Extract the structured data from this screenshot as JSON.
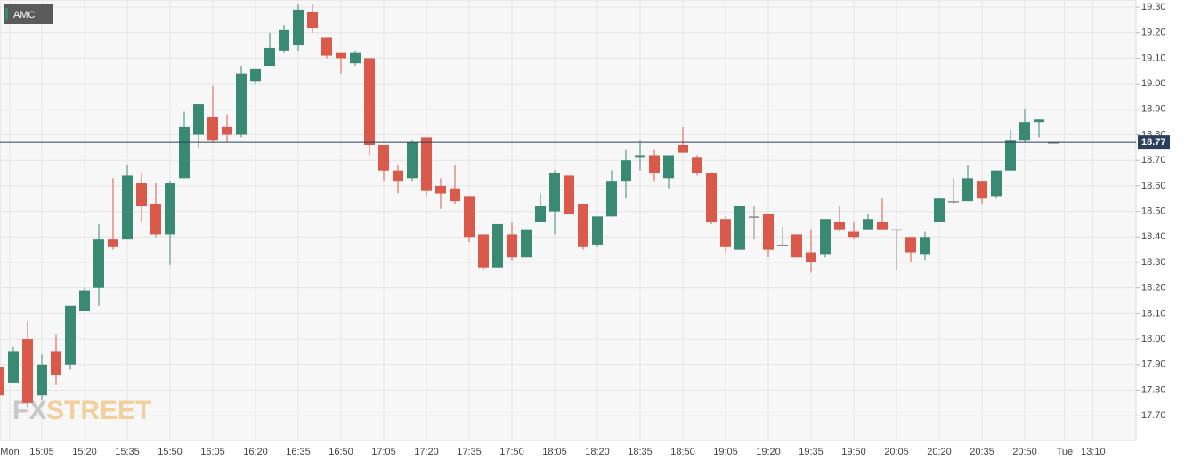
{
  "chart_data": {
    "type": "candlestick",
    "legend": "AMC",
    "watermark": [
      "FX",
      "STREET"
    ],
    "last_price": {
      "value": 18.77,
      "label": "18.77"
    },
    "ylim": [
      17.603,
      19.328
    ],
    "yticks": [
      {
        "value": 17.7,
        "label": "17.70"
      },
      {
        "value": 17.8,
        "label": "17.80"
      },
      {
        "value": 17.9,
        "label": "17.90"
      },
      {
        "value": 18.0,
        "label": "18.00"
      },
      {
        "value": 18.1,
        "label": "18.10"
      },
      {
        "value": 18.2,
        "label": "18.20"
      },
      {
        "value": 18.3,
        "label": "18.30"
      },
      {
        "value": 18.4,
        "label": "18.40"
      },
      {
        "value": 18.5,
        "label": "18.50"
      },
      {
        "value": 18.6,
        "label": "18.60"
      },
      {
        "value": 18.7,
        "label": "18.70"
      },
      {
        "value": 18.8,
        "label": "18.80"
      },
      {
        "value": 18.9,
        "label": "18.90"
      },
      {
        "value": 19.0,
        "label": "19.00"
      },
      {
        "value": 19.1,
        "label": "19.10"
      },
      {
        "value": 19.2,
        "label": "19.20"
      },
      {
        "value": 19.3,
        "label": "19.30"
      }
    ],
    "xticks": [
      {
        "value": 0.75,
        "label": "Mon"
      },
      {
        "value": 3,
        "label": "15:05"
      },
      {
        "value": 6,
        "label": "15:20"
      },
      {
        "value": 9,
        "label": "15:35"
      },
      {
        "value": 12,
        "label": "15:50"
      },
      {
        "value": 15,
        "label": "16:05"
      },
      {
        "value": 18,
        "label": "16:20"
      },
      {
        "value": 21,
        "label": "16:35"
      },
      {
        "value": 24,
        "label": "16:50"
      },
      {
        "value": 27,
        "label": "17:05"
      },
      {
        "value": 30,
        "label": "17:20"
      },
      {
        "value": 33,
        "label": "17:35"
      },
      {
        "value": 36,
        "label": "17:50"
      },
      {
        "value": 39,
        "label": "18:05"
      },
      {
        "value": 42,
        "label": "18:20"
      },
      {
        "value": 45,
        "label": "18:35"
      },
      {
        "value": 48,
        "label": "18:50"
      },
      {
        "value": 51,
        "label": "19:05"
      },
      {
        "value": 54,
        "label": "19:20"
      },
      {
        "value": 57,
        "label": "19:35"
      },
      {
        "value": 60,
        "label": "19:50"
      },
      {
        "value": 63,
        "label": "20:05"
      },
      {
        "value": 66,
        "label": "20:20"
      },
      {
        "value": 69,
        "label": "20:35"
      },
      {
        "value": 72,
        "label": "20:50"
      },
      {
        "value": 74.8,
        "label": "Tue"
      },
      {
        "value": 76.8,
        "label": "13:10"
      }
    ],
    "up_color": "#3a8a73",
    "down_color": "#d9594a",
    "flat_color": "#888888",
    "price_line_color": "#2b3f5c",
    "open": [
      17.89,
      17.83,
      18.0,
      17.78,
      17.95,
      17.9,
      18.11,
      18.2,
      18.39,
      18.39,
      18.61,
      18.53,
      18.41,
      18.63,
      18.8,
      18.87,
      18.83,
      18.8,
      19.01,
      19.07,
      19.13,
      19.15,
      19.28,
      19.18,
      19.12,
      19.08,
      19.1,
      18.76,
      18.66,
      18.63,
      18.79,
      18.6,
      18.59,
      18.56,
      18.41,
      18.28,
      18.41,
      18.32,
      18.46,
      18.5,
      18.64,
      18.53,
      18.37,
      18.48,
      18.62,
      18.71,
      18.72,
      18.63,
      18.76,
      18.71,
      18.65,
      18.47,
      18.35,
      18.48,
      18.49,
      18.37,
      18.41,
      18.34,
      18.33,
      18.46,
      18.42,
      18.43,
      18.46,
      18.43,
      18.4,
      18.33,
      18.46,
      18.54,
      18.54,
      18.62,
      18.56,
      18.66,
      18.78,
      18.85,
      18.77
    ],
    "high": [
      17.9,
      17.97,
      18.07,
      17.94,
      18.02,
      18.13,
      18.2,
      18.45,
      18.63,
      18.68,
      18.65,
      18.61,
      18.62,
      18.89,
      18.92,
      18.99,
      18.88,
      19.07,
      19.06,
      19.2,
      19.23,
      19.31,
      19.31,
      19.18,
      19.12,
      19.13,
      19.1,
      18.76,
      18.68,
      18.78,
      18.79,
      18.63,
      18.68,
      18.56,
      18.41,
      18.45,
      18.46,
      18.43,
      18.57,
      18.66,
      18.64,
      18.53,
      18.48,
      18.66,
      18.74,
      18.78,
      18.74,
      18.72,
      18.83,
      18.72,
      18.65,
      18.48,
      18.52,
      18.52,
      18.49,
      18.44,
      18.41,
      18.43,
      18.47,
      18.52,
      18.46,
      18.49,
      18.55,
      18.43,
      18.4,
      18.42,
      18.55,
      18.63,
      18.68,
      18.62,
      18.66,
      18.82,
      18.9,
      18.86,
      18.77
    ],
    "low": [
      17.61,
      17.83,
      17.73,
      17.76,
      17.82,
      17.88,
      18.11,
      18.13,
      18.35,
      18.39,
      18.46,
      18.4,
      18.29,
      18.63,
      18.75,
      18.77,
      18.77,
      18.79,
      19.0,
      19.07,
      19.12,
      19.13,
      19.2,
      19.1,
      19.04,
      19.07,
      18.72,
      18.62,
      18.57,
      18.62,
      18.56,
      18.51,
      18.53,
      18.38,
      18.27,
      18.28,
      18.31,
      18.32,
      18.46,
      18.41,
      18.49,
      18.35,
      18.36,
      18.48,
      18.55,
      18.66,
      18.62,
      18.59,
      18.73,
      18.64,
      18.45,
      18.34,
      18.35,
      18.39,
      18.32,
      18.37,
      18.32,
      18.26,
      18.32,
      18.42,
      18.39,
      18.43,
      18.43,
      18.27,
      18.3,
      18.31,
      18.46,
      18.53,
      18.54,
      18.53,
      18.55,
      18.66,
      18.77,
      18.79,
      18.77
    ],
    "close": [
      17.78,
      17.95,
      17.75,
      17.9,
      17.86,
      18.13,
      18.19,
      18.39,
      18.36,
      18.64,
      18.52,
      18.41,
      18.61,
      18.83,
      18.92,
      18.78,
      18.8,
      19.04,
      19.06,
      19.14,
      19.21,
      19.29,
      19.22,
      19.11,
      19.1,
      19.12,
      18.76,
      18.66,
      18.62,
      18.77,
      18.58,
      18.57,
      18.54,
      18.4,
      18.28,
      18.45,
      18.32,
      18.43,
      18.52,
      18.65,
      18.49,
      18.36,
      18.48,
      18.62,
      18.7,
      18.72,
      18.65,
      18.72,
      18.73,
      18.65,
      18.46,
      18.36,
      18.52,
      18.48,
      18.35,
      18.37,
      18.32,
      18.3,
      18.47,
      18.43,
      18.4,
      18.47,
      18.43,
      18.43,
      18.34,
      18.4,
      18.55,
      18.54,
      18.63,
      18.55,
      18.66,
      18.78,
      18.85,
      18.86,
      18.77
    ]
  }
}
